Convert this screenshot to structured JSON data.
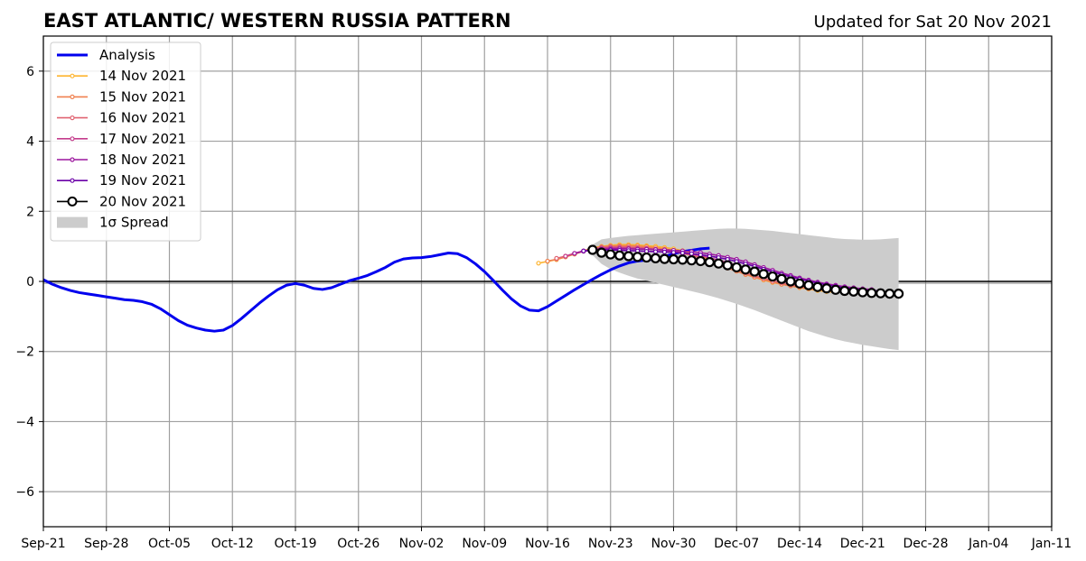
{
  "chart_data": {
    "type": "line",
    "title": "EAST ATLANTIC/ WESTERN RUSSIA PATTERN",
    "subtitle": "Updated for Sat 20 Nov 2021",
    "xlabel": "",
    "ylabel": "",
    "xlim": [
      "2021-09-21",
      "2022-01-11"
    ],
    "ylim": [
      -7,
      7
    ],
    "x_ticks": [
      "Sep-21",
      "Sep-28",
      "Oct-05",
      "Oct-12",
      "Oct-19",
      "Oct-26",
      "Nov-02",
      "Nov-09",
      "Nov-16",
      "Nov-23",
      "Nov-30",
      "Dec-07",
      "Dec-14",
      "Dec-21",
      "Dec-28",
      "Jan-04",
      "Jan-11"
    ],
    "y_ticks": [
      6,
      4,
      2,
      0,
      -2,
      -4,
      -6
    ],
    "y_tick_labels": [
      "6",
      "4",
      "2",
      "0",
      "−2",
      "−4",
      "−6"
    ],
    "grid": true,
    "zero_line": true,
    "legend_position": "upper-left",
    "legend": [
      {
        "label": "Analysis",
        "color": "#0000ee",
        "style": "thick-line"
      },
      {
        "label": "14 Nov 2021",
        "color": "#fdb42f",
        "style": "line-dots"
      },
      {
        "label": "15 Nov 2021",
        "color": "#f0804f",
        "style": "line-dots"
      },
      {
        "label": "16 Nov 2021",
        "color": "#e06472",
        "style": "line-dots"
      },
      {
        "label": "17 Nov 2021",
        "color": "#c43c8c",
        "style": "line-dots"
      },
      {
        "label": "18 Nov 2021",
        "color": "#9c179e",
        "style": "line-dots"
      },
      {
        "label": "19 Nov 2021",
        "color": "#6a00a8",
        "style": "line-dots"
      },
      {
        "label": "20 Nov 2021",
        "color": "#000000",
        "style": "line-circles"
      },
      {
        "label": "1σ Spread",
        "color": "#cccccc",
        "style": "patch"
      }
    ],
    "analysis": {
      "name": "Analysis",
      "color": "#0000ee",
      "start_date": "2021-09-21",
      "step_days": 1,
      "values": [
        0.05,
        -0.08,
        -0.18,
        -0.26,
        -0.32,
        -0.36,
        -0.4,
        -0.44,
        -0.48,
        -0.52,
        -0.54,
        -0.58,
        -0.65,
        -0.78,
        -0.95,
        -1.12,
        -1.25,
        -1.33,
        -1.39,
        -1.42,
        -1.39,
        -1.26,
        -1.06,
        -0.84,
        -0.62,
        -0.42,
        -0.24,
        -0.11,
        -0.06,
        -0.11,
        -0.2,
        -0.23,
        -0.18,
        -0.08,
        0.02,
        0.09,
        0.17,
        0.28,
        0.4,
        0.55,
        0.64,
        0.67,
        0.68,
        0.71,
        0.76,
        0.81,
        0.79,
        0.68,
        0.5,
        0.28,
        0.02,
        -0.25,
        -0.5,
        -0.7,
        -0.82,
        -0.84,
        -0.72,
        -0.56,
        -0.4,
        -0.24,
        -0.09,
        0.06,
        0.2,
        0.33,
        0.44,
        0.53,
        0.58,
        0.61,
        0.64,
        0.71,
        0.79,
        0.85,
        0.89,
        0.93,
        0.95
      ]
    },
    "forecasts": [
      {
        "name": "14 Nov 2021",
        "color": "#fdb42f",
        "start_date": "2021-11-15",
        "step_days": 1,
        "values": [
          0.52,
          0.57,
          0.62,
          0.7,
          0.78,
          0.87,
          0.96,
          1.0,
          1.03,
          1.05,
          1.05,
          1.04,
          1.02,
          1.0,
          0.97,
          0.93,
          0.88,
          0.81,
          0.72,
          0.62,
          0.51,
          0.4,
          0.3,
          0.2,
          0.12,
          0.04,
          -0.03,
          -0.08,
          -0.13,
          -0.18,
          -0.22,
          -0.26,
          -0.29,
          -0.31
        ]
      },
      {
        "name": "15 Nov 2021",
        "color": "#f0804f",
        "start_date": "2021-11-16",
        "step_days": 1,
        "values": [
          0.58,
          0.63,
          0.7,
          0.78,
          0.86,
          0.94,
          0.99,
          1.01,
          1.02,
          1.02,
          1.01,
          0.99,
          0.96,
          0.93,
          0.88,
          0.82,
          0.75,
          0.67,
          0.58,
          0.48,
          0.38,
          0.29,
          0.2,
          0.12,
          0.05,
          -0.02,
          -0.08,
          -0.13,
          -0.17,
          -0.21,
          -0.24,
          -0.27,
          -0.29,
          -0.3
        ]
      },
      {
        "name": "16 Nov 2021",
        "color": "#e06472",
        "start_date": "2021-11-17",
        "step_days": 1,
        "values": [
          0.66,
          0.72,
          0.8,
          0.87,
          0.93,
          0.97,
          0.99,
          0.99,
          0.98,
          0.97,
          0.95,
          0.92,
          0.89,
          0.85,
          0.8,
          0.74,
          0.67,
          0.59,
          0.51,
          0.42,
          0.33,
          0.24,
          0.16,
          0.09,
          0.02,
          -0.04,
          -0.1,
          -0.14,
          -0.18,
          -0.22,
          -0.25,
          -0.27,
          -0.29,
          -0.3
        ]
      },
      {
        "name": "17 Nov 2021",
        "color": "#c43c8c",
        "start_date": "2021-11-18",
        "step_days": 1,
        "values": [
          0.72,
          0.8,
          0.87,
          0.92,
          0.95,
          0.96,
          0.96,
          0.95,
          0.94,
          0.93,
          0.91,
          0.89,
          0.86,
          0.82,
          0.78,
          0.73,
          0.67,
          0.61,
          0.54,
          0.46,
          0.38,
          0.3,
          0.22,
          0.15,
          0.08,
          0.02,
          -0.04,
          -0.09,
          -0.13,
          -0.17,
          -0.2,
          -0.23,
          -0.25,
          -0.27
        ]
      },
      {
        "name": "18 Nov 2021",
        "color": "#9c179e",
        "start_date": "2021-11-19",
        "step_days": 1,
        "values": [
          0.8,
          0.86,
          0.9,
          0.92,
          0.93,
          0.93,
          0.93,
          0.92,
          0.92,
          0.91,
          0.9,
          0.89,
          0.87,
          0.85,
          0.82,
          0.78,
          0.74,
          0.69,
          0.63,
          0.56,
          0.48,
          0.4,
          0.32,
          0.24,
          0.17,
          0.1,
          0.04,
          -0.02,
          -0.07,
          -0.11,
          -0.15,
          -0.18,
          -0.21,
          -0.23
        ]
      },
      {
        "name": "19 Nov 2021",
        "color": "#6a00a8",
        "start_date": "2021-11-20",
        "step_days": 1,
        "values": [
          0.87,
          0.89,
          0.9,
          0.9,
          0.89,
          0.88,
          0.87,
          0.86,
          0.85,
          0.84,
          0.83,
          0.81,
          0.79,
          0.76,
          0.72,
          0.68,
          0.63,
          0.57,
          0.5,
          0.43,
          0.35,
          0.27,
          0.2,
          0.13,
          0.07,
          0.01,
          -0.05,
          -0.1,
          -0.14,
          -0.18,
          -0.21,
          -0.24,
          -0.26,
          -0.27
        ]
      },
      {
        "name": "20 Nov 2021",
        "color": "#000000",
        "start_date": "2021-11-21",
        "step_days": 1,
        "open_circles": true,
        "values": [
          0.9,
          0.82,
          0.77,
          0.74,
          0.72,
          0.7,
          0.68,
          0.66,
          0.64,
          0.63,
          0.62,
          0.6,
          0.58,
          0.55,
          0.51,
          0.46,
          0.4,
          0.34,
          0.28,
          0.21,
          0.14,
          0.07,
          0.0,
          -0.06,
          -0.11,
          -0.16,
          -0.2,
          -0.24,
          -0.27,
          -0.29,
          -0.31,
          -0.33,
          -0.34,
          -0.35,
          -0.35
        ]
      }
    ],
    "spread": {
      "name": "1σ Spread",
      "color": "#cccccc",
      "start_date": "2021-11-21",
      "step_days": 1,
      "upper": [
        1.05,
        1.2,
        1.24,
        1.27,
        1.3,
        1.32,
        1.34,
        1.36,
        1.38,
        1.4,
        1.42,
        1.44,
        1.46,
        1.48,
        1.5,
        1.51,
        1.51,
        1.5,
        1.48,
        1.46,
        1.44,
        1.41,
        1.38,
        1.35,
        1.32,
        1.29,
        1.26,
        1.23,
        1.21,
        1.2,
        1.19,
        1.19,
        1.2,
        1.22,
        1.24
      ],
      "lower": [
        0.75,
        0.5,
        0.35,
        0.25,
        0.16,
        0.08,
        0.02,
        -0.04,
        -0.1,
        -0.16,
        -0.22,
        -0.28,
        -0.34,
        -0.41,
        -0.48,
        -0.56,
        -0.64,
        -0.73,
        -0.82,
        -0.92,
        -1.02,
        -1.12,
        -1.22,
        -1.32,
        -1.42,
        -1.5,
        -1.58,
        -1.65,
        -1.71,
        -1.76,
        -1.81,
        -1.85,
        -1.89,
        -1.93,
        -1.96
      ]
    }
  }
}
